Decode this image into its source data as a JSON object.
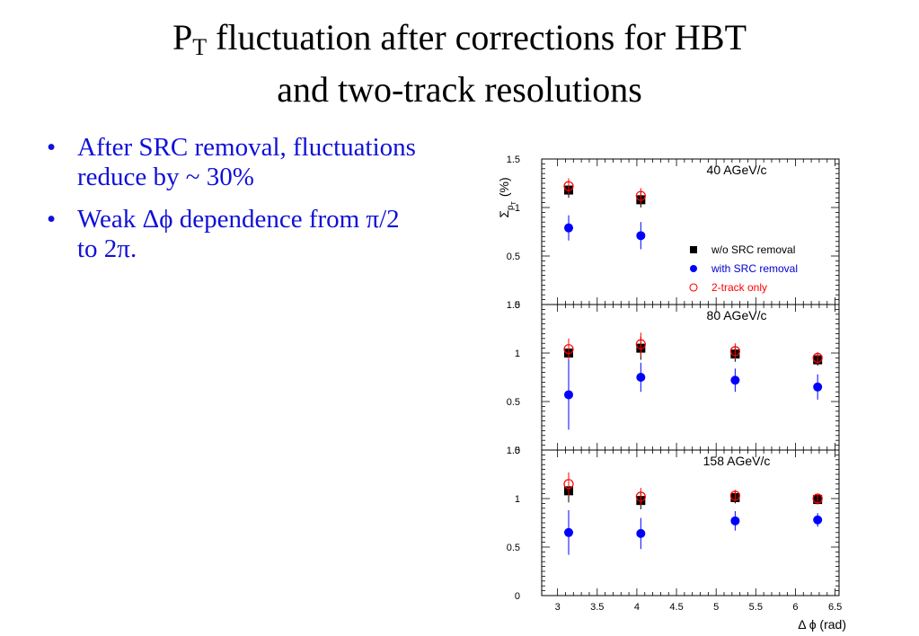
{
  "slide": {
    "title_main": "P",
    "title_sub": "T",
    "title_rest": " fluctuation after corrections for HBT",
    "title_line2": "and two-track resolutions",
    "bullets": [
      {
        "symbol": "•",
        "text": "After SRC removal, fluctuations reduce by ~ 30%"
      },
      {
        "symbol": "•",
        "text": "Weak Δϕ dependence from π/2 to 2π."
      }
    ]
  },
  "chart_data": {
    "type": "scatter",
    "ylabel_base": "Σ",
    "ylabel_sub": "p",
    "ylabel_subsub": "T",
    "ylabel_unit": "(%)",
    "xlabel": "Δ ϕ (rad)",
    "xlim": [
      2.8,
      6.55
    ],
    "ylim": [
      0,
      1.5
    ],
    "x_ticks": [
      "3",
      "3.5",
      "4",
      "4.5",
      "5",
      "5.5",
      "6",
      "6.5"
    ],
    "y_ticks": [
      "0",
      "0.5",
      "1",
      "1.5"
    ],
    "legend": {
      "placement": "panel-1 right",
      "entries": [
        {
          "label": "w/o SRC removal",
          "marker": "square",
          "color": "#000000",
          "text_color": "#000000"
        },
        {
          "label": "with SRC removal",
          "marker": "circle",
          "color": "#0000ff",
          "text_color": "#0000cc"
        },
        {
          "label": "2-track only",
          "marker": "open-circle",
          "color": "#ff0000",
          "text_color": "#ff0000"
        }
      ]
    },
    "panels": [
      {
        "label": "40 AGeV/c",
        "series": [
          {
            "name": "w/o SRC removal",
            "x": [
              3.14,
              4.05
            ],
            "y": [
              1.18,
              1.08
            ],
            "err": [
              0.08,
              0.08
            ]
          },
          {
            "name": "with SRC removal",
            "x": [
              3.14,
              4.05
            ],
            "y": [
              0.79,
              0.71
            ],
            "err": [
              0.13,
              0.14
            ]
          },
          {
            "name": "2-track only",
            "x": [
              3.14,
              4.05
            ],
            "y": [
              1.22,
              1.12
            ],
            "err": [
              0.08,
              0.08
            ]
          }
        ]
      },
      {
        "label": "80 AGeV/c",
        "series": [
          {
            "name": "w/o SRC removal",
            "x": [
              3.14,
              4.05,
              5.24,
              6.28
            ],
            "y": [
              1.0,
              1.05,
              0.99,
              0.93
            ],
            "err": [
              0.11,
              0.12,
              0.08,
              0.06
            ]
          },
          {
            "name": "with SRC removal",
            "x": [
              3.14,
              4.05,
              5.24,
              6.28
            ],
            "y": [
              0.57,
              0.75,
              0.72,
              0.65
            ],
            "err": [
              0.36,
              0.15,
              0.12,
              0.13
            ]
          },
          {
            "name": "2-track only",
            "x": [
              3.14,
              4.05,
              5.24,
              6.28
            ],
            "y": [
              1.04,
              1.09,
              1.02,
              0.95
            ],
            "err": [
              0.11,
              0.12,
              0.08,
              0.06
            ]
          }
        ]
      },
      {
        "label": "158 AGeV/c",
        "series": [
          {
            "name": "w/o SRC removal",
            "x": [
              3.14,
              4.05,
              5.24,
              6.28
            ],
            "y": [
              1.08,
              0.98,
              1.01,
              0.99
            ],
            "err": [
              0.12,
              0.09,
              0.06,
              0.05
            ]
          },
          {
            "name": "with SRC removal",
            "x": [
              3.14,
              4.05,
              5.24,
              6.28
            ],
            "y": [
              0.65,
              0.64,
              0.77,
              0.78
            ],
            "err": [
              0.23,
              0.16,
              0.1,
              0.07
            ]
          },
          {
            "name": "2-track only",
            "x": [
              3.14,
              4.05,
              5.24,
              6.28
            ],
            "y": [
              1.15,
              1.02,
              1.03,
              1.0
            ],
            "err": [
              0.12,
              0.09,
              0.06,
              0.05
            ]
          }
        ]
      }
    ]
  }
}
